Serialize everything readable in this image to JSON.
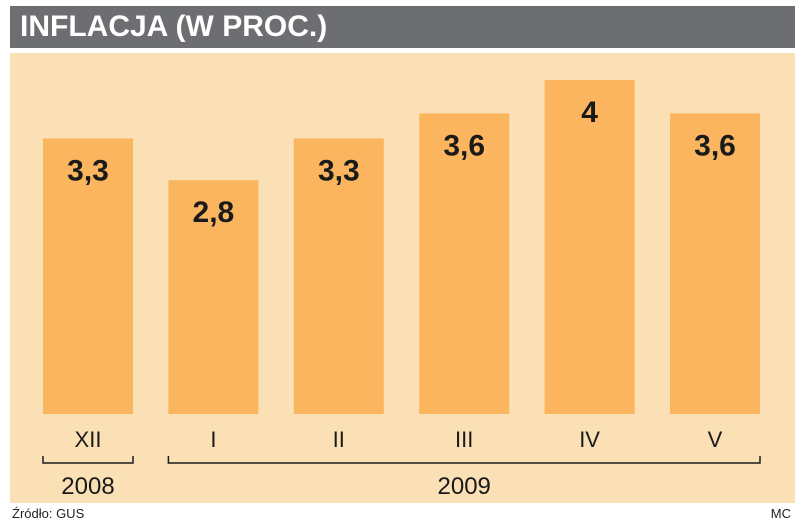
{
  "header": {
    "title": "INFLACJA (W PROC.)"
  },
  "chart_data": {
    "type": "bar",
    "title": "INFLACJA (W PROC.)",
    "categories": [
      "XII",
      "I",
      "II",
      "III",
      "IV",
      "V"
    ],
    "values": [
      3.3,
      2.8,
      3.3,
      3.6,
      4.0,
      3.6
    ],
    "value_labels": [
      "3,3",
      "2,8",
      "3,3",
      "3,6",
      "4",
      "3,6"
    ],
    "year_groups": [
      {
        "label": "2008",
        "from": 0,
        "to": 0
      },
      {
        "label": "2009",
        "from": 1,
        "to": 5
      }
    ],
    "ylim": [
      0,
      4.2
    ],
    "grid": false,
    "legend": "none"
  },
  "footer": {
    "source": "Źródło: GUS",
    "author": "MC"
  },
  "colors": {
    "title_bg": "#6d6e71",
    "panel_bg": "#fbe0b5",
    "bar": "#fbb55e",
    "text": "#1a1a1a"
  }
}
